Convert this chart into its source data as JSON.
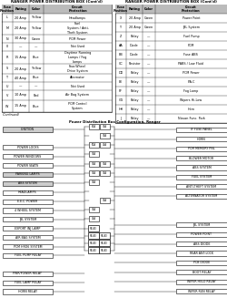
{
  "title_left": "RANGER POWER DISTRIBUTION BOX (Cont'd)",
  "title_right": "RANGER POWER DISTRIBUTION BOX (Cont'd)",
  "table_left_headers": [
    "Fuse\nPosition",
    "Rating",
    "Color",
    "Circuit\nProtection"
  ],
  "table_left_rows": [
    [
      "L",
      "20 Amp",
      "Yellow",
      "Headlamps"
    ],
    [
      "M",
      "20 Amp",
      "Yellow",
      "Fuel\nSystem / Anti-\nTheft System"
    ],
    [
      "N",
      "30 Amp",
      "Green",
      "PCM Power"
    ],
    [
      "0",
      "—",
      "—",
      "Not Used"
    ],
    [
      "R",
      "15 Amp",
      "Blue",
      "Daytime Running\nLamps / Fog\nLamps"
    ],
    [
      "S",
      "20 Amp",
      "Yellow",
      "Four-Wheel\nDrive System"
    ],
    [
      "T",
      "40 Amp",
      "Blue",
      "Alternator"
    ],
    [
      "U",
      "—",
      "—",
      "Not Used"
    ],
    [
      "V",
      "10 Amp",
      "Red",
      "Air Bag System"
    ],
    [
      "W",
      "15 Amp",
      "Blue",
      "PCM Control\nSystem"
    ]
  ],
  "table_right_headers": [
    "Fuse\nPosition",
    "Rating",
    "Color",
    "Circuit\nProtection"
  ],
  "table_right_rows": [
    [
      "X",
      "20 Amp",
      "Green",
      "Power Point"
    ],
    [
      "Y",
      "20 Amp",
      "Green",
      "JBL System"
    ],
    [
      "Z",
      "Relay",
      "—",
      "Fuel Pump"
    ],
    [
      "AA",
      "Diode",
      "—",
      "PCM"
    ],
    [
      "BB",
      "Diode",
      "—",
      "Fuse ABS"
    ],
    [
      "CC",
      "Resistor",
      "—",
      "PABS / Low Fluid"
    ],
    [
      "DD",
      "Relay",
      "—",
      "PCM Power"
    ],
    [
      "EE",
      "Relay",
      "—",
      "P.A.C"
    ],
    [
      "FF",
      "Relay",
      "—",
      "Fog Lamp"
    ],
    [
      "GG",
      "Relay",
      "—",
      "Wipers Hi-Low"
    ],
    [
      "HH",
      "Relay",
      "—",
      "Horn"
    ],
    [
      "JJ",
      "Relay",
      "—",
      "Nissan Func. Park"
    ]
  ],
  "footnote": "(Continued)",
  "diagram_title": "Power Distribution Box Configuration, Ranger",
  "left_labels": [
    "IGNITION",
    "",
    "POWER LOCKS",
    "POWER WINDOWS",
    "POWER SEATS",
    "PARKING LAMPS",
    "ABS SYSTEM",
    "HEADLAMPS",
    "E.E.C. POWER",
    "4 WHEEL SYSTEM",
    "JBL SYSTEM",
    "EXPORT INJ LAMP",
    "AIR BAG SYSTEM",
    "PCM HRO6 SYSTEM",
    "FUEL PUMP RELAY",
    "",
    "PWR/POWER RELAY",
    "FUEL LAMP RELAY",
    "HORN RELAY"
  ],
  "right_labels": [
    "IF FUSE PANEL",
    "HORN",
    "PCM MEMORY PNL",
    "BLOWER MOTOR",
    "ABS SYSTEM",
    "FUEL SYSTEM",
    "ANTI-THEFT SYSTEM",
    "ALTERNATOR SYSTEM",
    "",
    "",
    "JBL SYSTEM",
    "POWER POINT",
    "ABS DIODE",
    "REAR ANTILOCK",
    "PCB DIODE",
    "BOOT RELAY",
    "WIPER HI/LO RELAY",
    "WIPER RUN RELAY"
  ],
  "bg_color": "#ffffff"
}
